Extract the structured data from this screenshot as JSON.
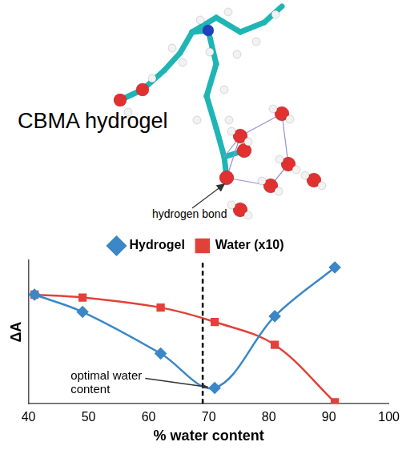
{
  "illustration": {
    "title": "CBMA hydrogel",
    "annotation": "hydrogen bond"
  },
  "chart_data": {
    "type": "line",
    "x_label": "% water content",
    "y_label": "ΔA",
    "x": [
      41,
      49,
      62,
      71,
      81,
      91
    ],
    "series": [
      {
        "name": "Hydrogel",
        "color": "#3b87c7",
        "marker": "diamond",
        "values": [
          7.6,
          6.4,
          3.5,
          1.1,
          6.1,
          9.5
        ]
      },
      {
        "name": "Water (x10)",
        "color": "#e2413a",
        "marker": "square",
        "values": [
          7.6,
          7.4,
          6.7,
          5.7,
          4.1,
          0.1
        ]
      }
    ],
    "xlim": [
      40,
      100
    ],
    "xticks": [
      40,
      50,
      60,
      70,
      80,
      90,
      100
    ],
    "ylim": [
      0,
      10
    ],
    "tick_labels": "x",
    "grid": false,
    "legend": "top",
    "reference_line": {
      "x": 69,
      "line_style": "dashed"
    },
    "annotations": [
      {
        "text": "optimal water content",
        "x": 71,
        "y": 1.1
      }
    ]
  }
}
